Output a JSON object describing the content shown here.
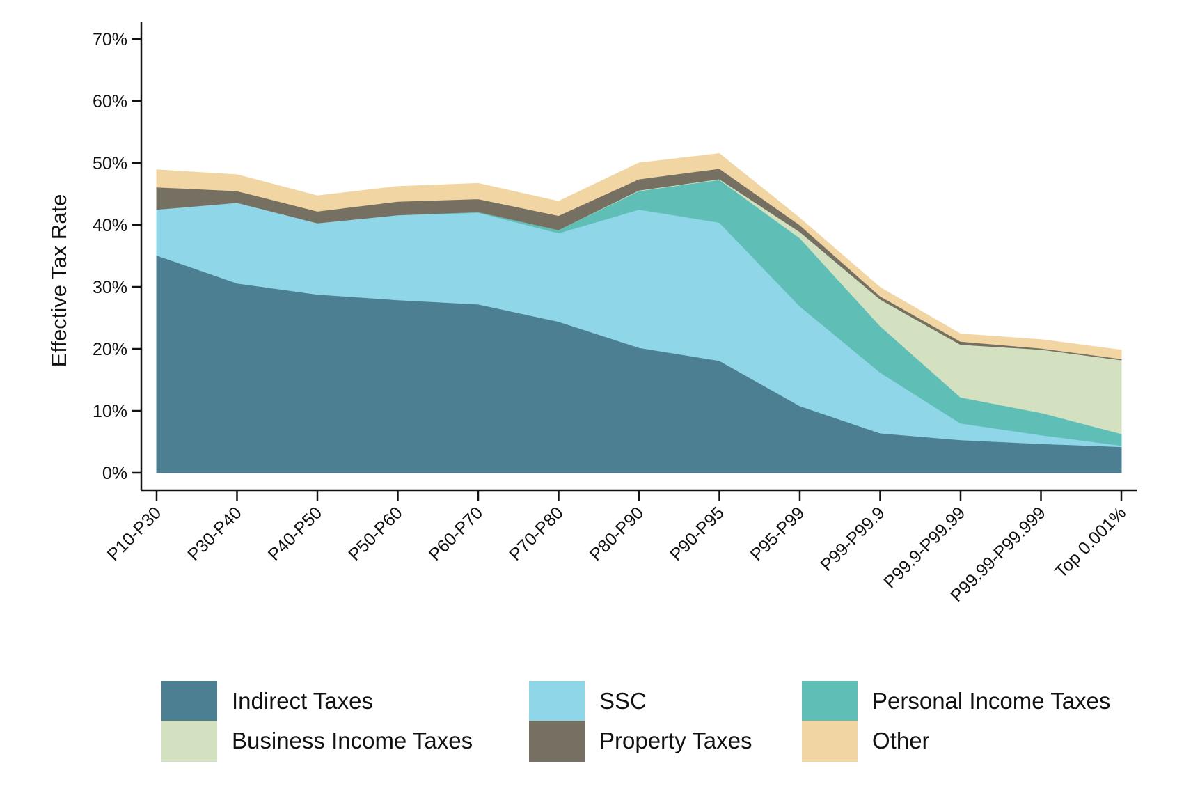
{
  "chart_data": {
    "type": "area",
    "stacked": true,
    "title": "",
    "xlabel": "",
    "ylabel": "Effective Tax Rate",
    "ylim": [
      0,
      70
    ],
    "yticks": [
      0,
      10,
      20,
      30,
      40,
      50,
      60,
      70
    ],
    "ytick_labels": [
      "0%",
      "10%",
      "20%",
      "30%",
      "40%",
      "50%",
      "60%",
      "70%"
    ],
    "grid": false,
    "legend_position": "bottom",
    "categories": [
      "P10-P30",
      "P30-P40",
      "P40-P50",
      "P50-P60",
      "P60-P70",
      "P70-P80",
      "P80-P90",
      "P90-P95",
      "P95-P99",
      "P99-P99.9",
      "P99.9-P99.99",
      "P99.99-P99.999",
      "Top 0.001%"
    ],
    "series": [
      {
        "name": "Indirect Taxes",
        "color": "#4d7f92",
        "values": [
          35.1,
          30.6,
          28.8,
          27.9,
          27.2,
          24.4,
          20.2,
          18.1,
          10.8,
          6.4,
          5.3,
          4.7,
          4.2
        ]
      },
      {
        "name": "SSC",
        "color": "#8fd6e8",
        "values": [
          7.4,
          13.0,
          11.5,
          13.7,
          14.8,
          14.3,
          22.3,
          22.3,
          16.1,
          9.8,
          2.7,
          1.4,
          0.2
        ]
      },
      {
        "name": "Personal Income Taxes",
        "color": "#5fbfb6",
        "values": [
          0.0,
          0.0,
          0.0,
          0.0,
          0.1,
          0.5,
          3.0,
          6.9,
          11.0,
          7.5,
          4.2,
          3.6,
          1.9
        ]
      },
      {
        "name": "Business Income Taxes",
        "color": "#d4e1c0",
        "values": [
          0.0,
          0.0,
          0.0,
          0.0,
          0.0,
          0.0,
          0.1,
          0.1,
          1.0,
          4.3,
          8.5,
          10.2,
          11.9
        ]
      },
      {
        "name": "Property Taxes",
        "color": "#767062",
        "values": [
          3.6,
          1.9,
          1.9,
          2.2,
          2.1,
          2.3,
          1.8,
          1.7,
          1.1,
          0.5,
          0.5,
          0.2,
          0.2
        ]
      },
      {
        "name": "Other",
        "color": "#f1d5a2",
        "values": [
          2.8,
          2.6,
          2.5,
          2.4,
          2.5,
          2.3,
          2.6,
          2.4,
          1.1,
          1.4,
          1.2,
          1.4,
          1.4
        ]
      }
    ]
  }
}
